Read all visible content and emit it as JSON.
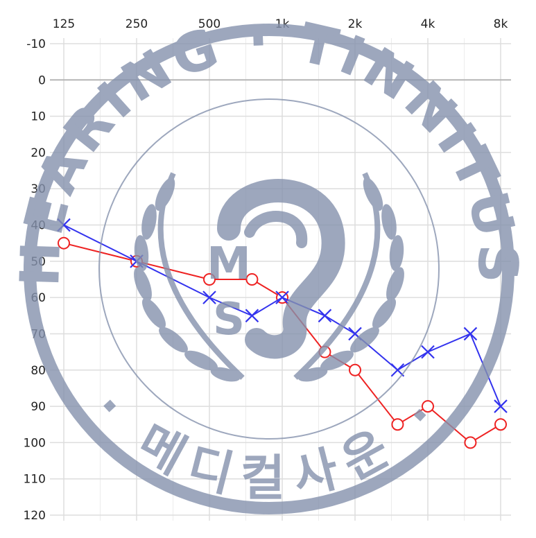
{
  "chart_data": {
    "type": "line",
    "title": "",
    "xlabel": "",
    "ylabel": "",
    "x_ticks": [
      "125",
      "250",
      "500",
      "1k",
      "2k",
      "4k",
      "8k"
    ],
    "x_tick_values": [
      125,
      250,
      500,
      1000,
      2000,
      4000,
      8000
    ],
    "x_scale": "log",
    "y_ticks": [
      "-10",
      "0",
      "10",
      "20",
      "30",
      "40",
      "50",
      "60",
      "70",
      "80",
      "90",
      "100",
      "110",
      "120"
    ],
    "y_tick_values": [
      -10,
      0,
      10,
      20,
      30,
      40,
      50,
      60,
      70,
      80,
      90,
      100,
      110,
      120
    ],
    "ylim": [
      -10,
      120
    ],
    "y_inverted": true,
    "grid": true,
    "series": [
      {
        "marker": "circle",
        "color": "#ee2222",
        "x": [
          125,
          250,
          500,
          750,
          1000,
          1500,
          2000,
          3000,
          4000,
          6000,
          8000
        ],
        "y": [
          45,
          50,
          55,
          55,
          60,
          75,
          80,
          95,
          90,
          100,
          95
        ]
      },
      {
        "marker": "x",
        "color": "#3333ee",
        "x": [
          125,
          250,
          500,
          750,
          1000,
          1500,
          2000,
          3000,
          4000,
          6000,
          8000
        ],
        "y": [
          40,
          50,
          60,
          65,
          60,
          65,
          70,
          80,
          75,
          70,
          90
        ]
      }
    ]
  },
  "watermark": {
    "top_text": "HEARING · TINNITUS",
    "bottom_text": "· 메디컬사운 ·",
    "center_text_1": "M",
    "center_text_2": "S",
    "color": "#8592ad"
  }
}
